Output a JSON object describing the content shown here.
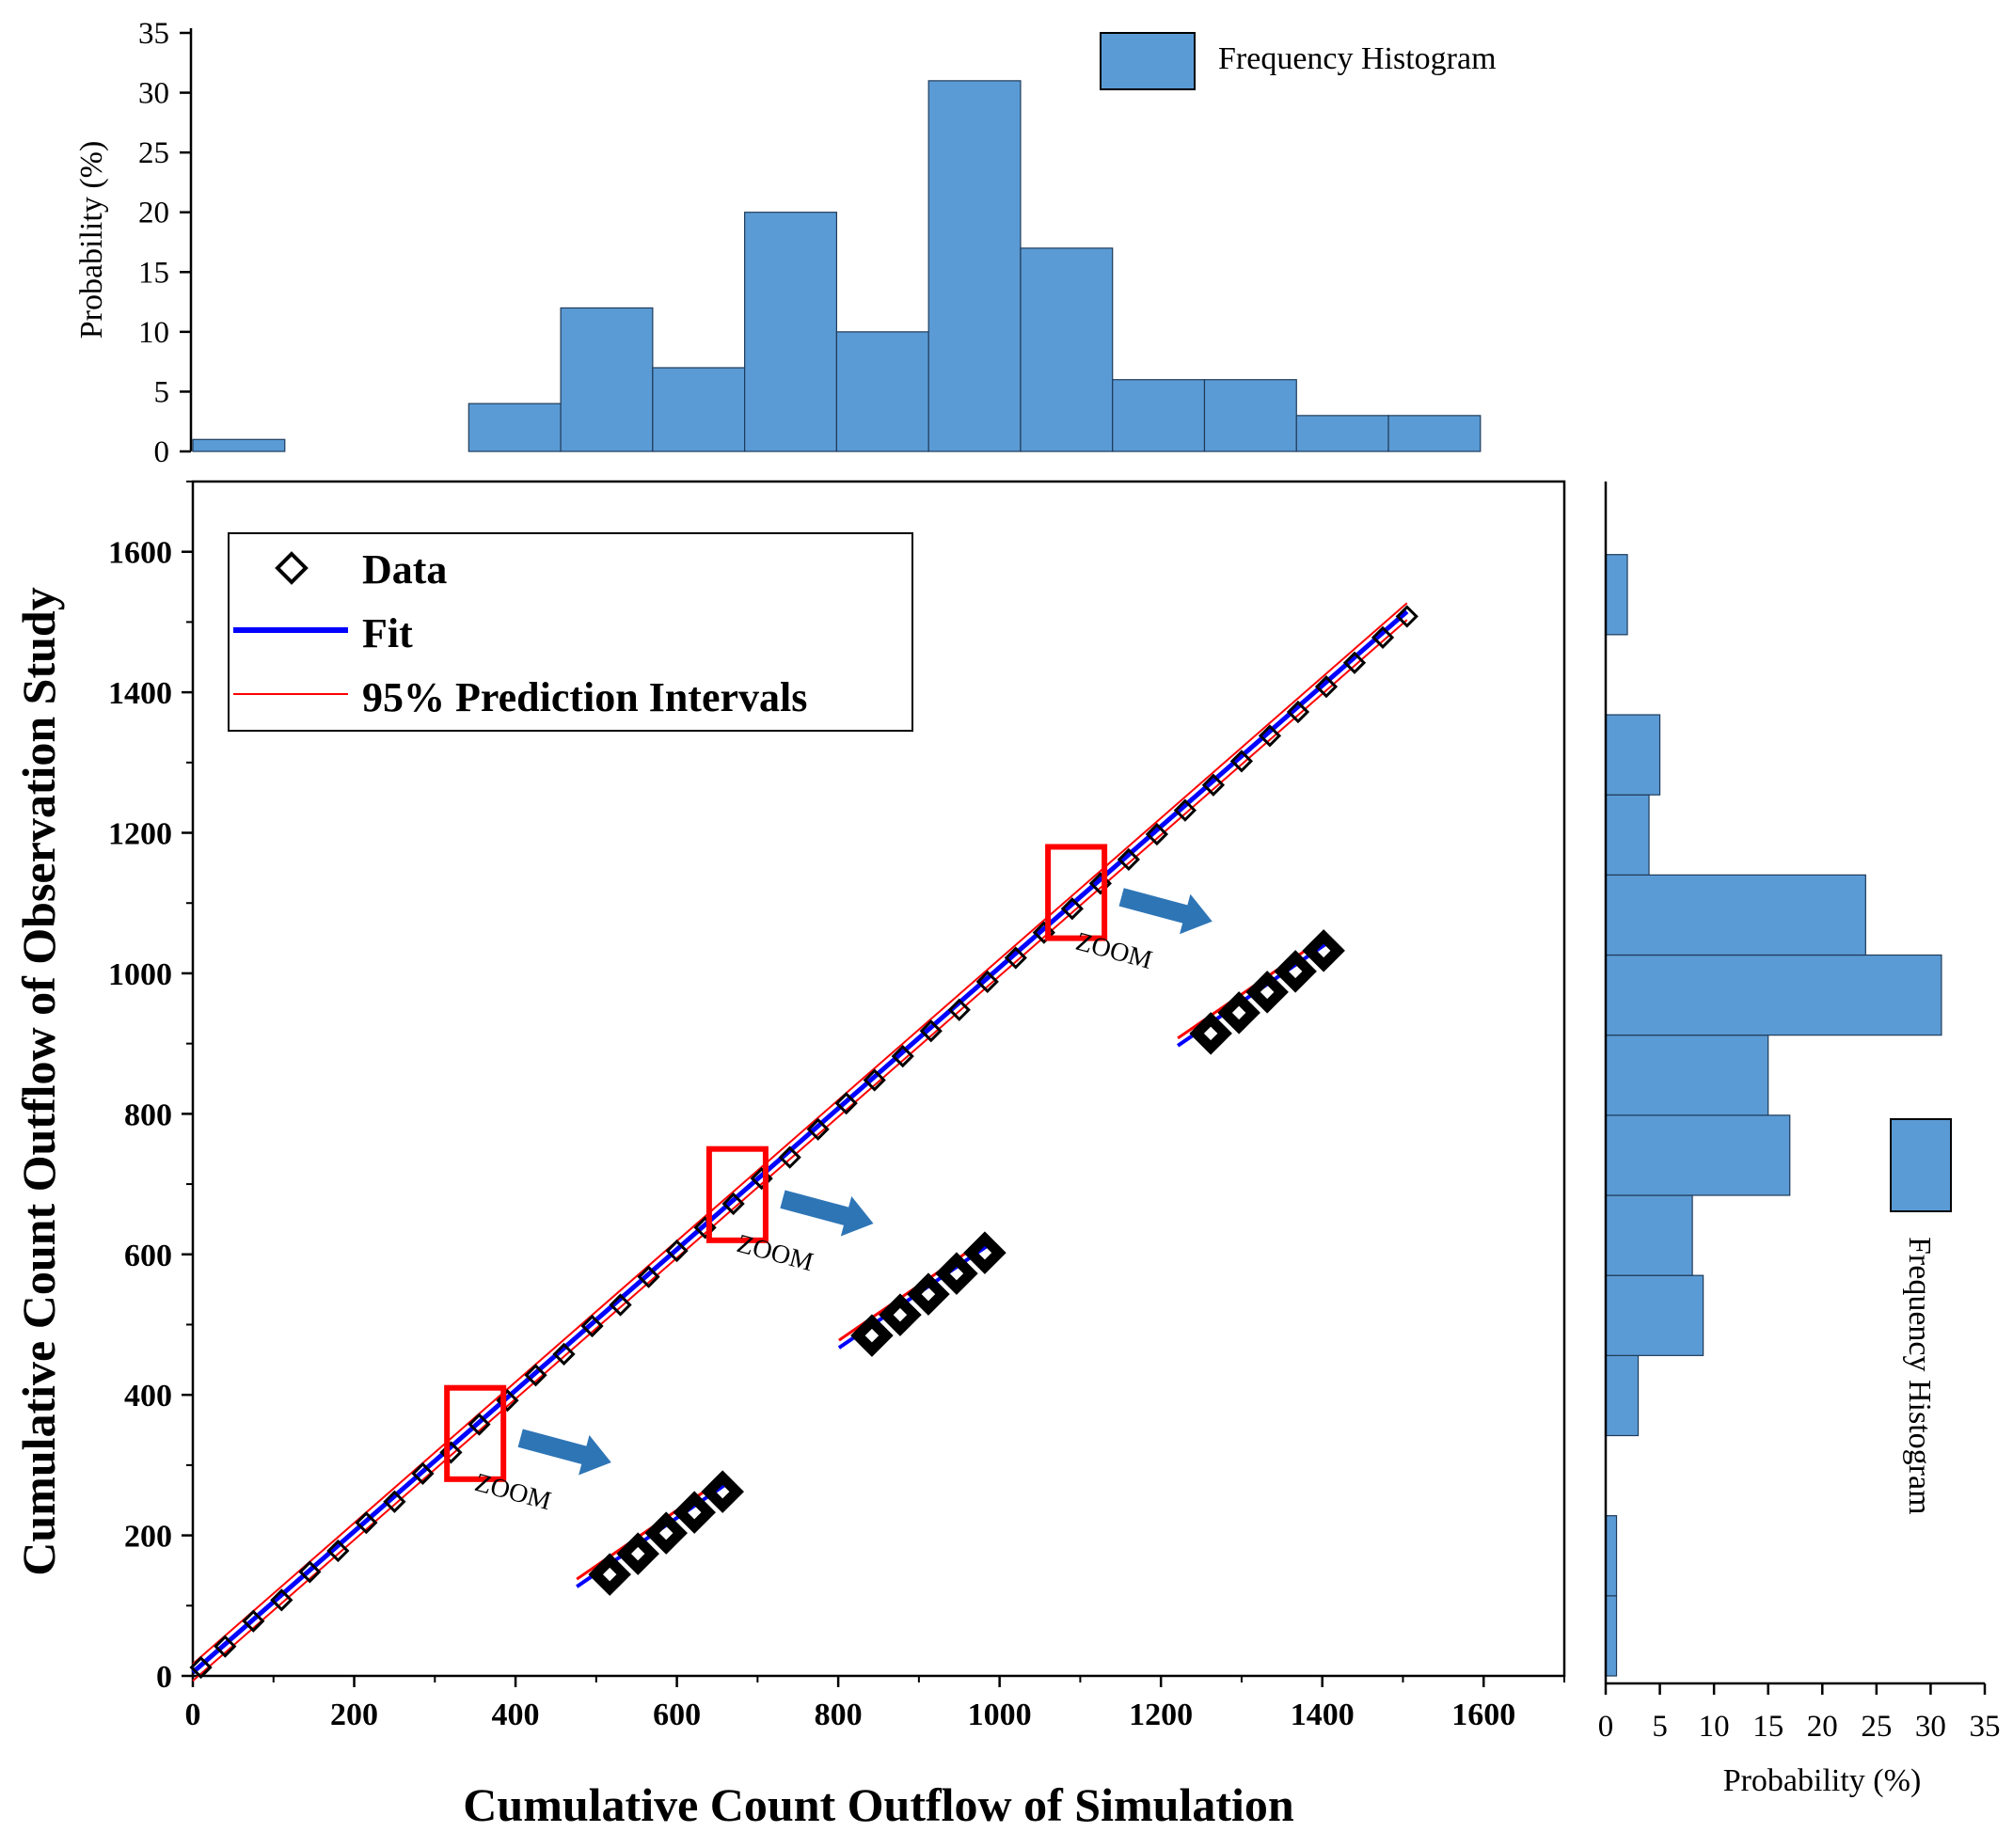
{
  "colors": {
    "hist_fill": "#5b9bd5",
    "hist_edge": "#1f3b5a",
    "fit": "#0000ff",
    "interval": "#ff0000",
    "zoom_box": "#ff0000",
    "arrow": "#2e75b6",
    "marker": "#000000"
  },
  "chart_data": [
    {
      "id": "main",
      "type": "scatter",
      "xlabel": "Cumulative Count Outflow of Simulation",
      "ylabel": "Cumulative Count Outflow of Observation Study",
      "xlim": [
        0,
        1700
      ],
      "ylim": [
        0,
        1700
      ],
      "xticks": [
        "0",
        "200",
        "400",
        "600",
        "800",
        "1000",
        "1200",
        "1400",
        "1600"
      ],
      "yticks": [
        "0",
        "200",
        "400",
        "600",
        "800",
        "1000",
        "1200",
        "1400",
        "1600"
      ],
      "legend": {
        "data": "Data",
        "fit": "Fit",
        "interval": "95% Prediction Intervals"
      },
      "fit_line": {
        "x": [
          0,
          1505
        ],
        "y": [
          5,
          1515
        ]
      },
      "interval_offset": 12,
      "points": {
        "x": [
          10,
          40,
          75,
          110,
          145,
          180,
          215,
          250,
          285,
          320,
          355,
          390,
          425,
          460,
          495,
          530,
          565,
          600,
          635,
          670,
          705,
          740,
          775,
          810,
          845,
          880,
          915,
          950,
          985,
          1020,
          1055,
          1090,
          1125,
          1160,
          1195,
          1230,
          1265,
          1300,
          1335,
          1370,
          1405,
          1440,
          1475,
          1505
        ],
        "y": [
          12,
          42,
          78,
          108,
          148,
          178,
          218,
          248,
          288,
          318,
          358,
          392,
          428,
          458,
          498,
          528,
          568,
          605,
          638,
          672,
          708,
          738,
          778,
          815,
          848,
          882,
          918,
          948,
          988,
          1022,
          1058,
          1092,
          1128,
          1162,
          1198,
          1232,
          1268,
          1302,
          1338,
          1372,
          1408,
          1442,
          1478,
          1508
        ]
      },
      "zoom_label": "ZOOM",
      "zooms": [
        {
          "box_x": [
            315,
            385
          ],
          "box_y": [
            280,
            410
          ]
        },
        {
          "box_x": [
            640,
            710
          ],
          "box_y": [
            620,
            750
          ]
        },
        {
          "box_x": [
            1060,
            1130
          ],
          "box_y": [
            1050,
            1180
          ]
        }
      ]
    },
    {
      "id": "top_histogram",
      "type": "bar",
      "title": "Frequency Histogram",
      "ylabel": "Probability (%)",
      "ylim": [
        0,
        35
      ],
      "yticks": [
        "0",
        "5",
        "10",
        "15",
        "20",
        "25",
        "30",
        "35"
      ],
      "bin_edges": [
        0,
        114,
        228,
        342,
        456,
        570,
        684,
        798,
        912,
        1026,
        1140,
        1254,
        1368,
        1482,
        1596
      ],
      "values": [
        1,
        0,
        0,
        4,
        12,
        7,
        20,
        10,
        31,
        17,
        6,
        6,
        3,
        3
      ]
    },
    {
      "id": "right_histogram",
      "type": "bar",
      "orientation": "horizontal",
      "title": "Frequency Histogram",
      "xlabel": "Probability (%)",
      "xlim": [
        0,
        35
      ],
      "xticks": [
        "0",
        "5",
        "10",
        "15",
        "20",
        "25",
        "30",
        "35"
      ],
      "bin_edges": [
        0,
        114,
        228,
        342,
        456,
        570,
        684,
        798,
        912,
        1026,
        1140,
        1254,
        1368,
        1482,
        1596
      ],
      "values": [
        1,
        1,
        0,
        3,
        9,
        8,
        17,
        15,
        31,
        24,
        4,
        5,
        0,
        2
      ]
    }
  ]
}
